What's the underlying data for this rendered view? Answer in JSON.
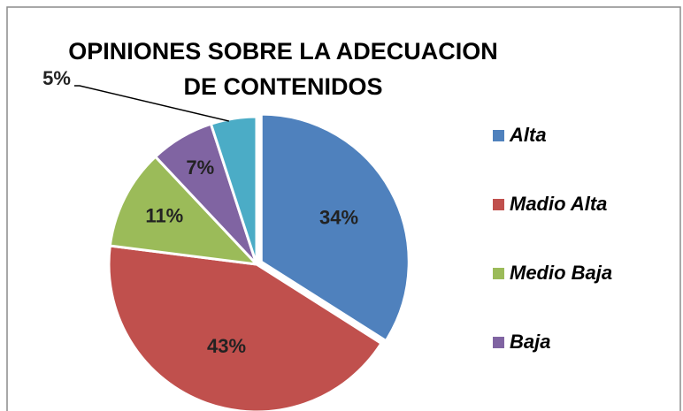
{
  "chart_data": {
    "type": "pie",
    "title": "OPINIONES SOBRE LA ADECUACION DE CONTENIDOS",
    "categories": [
      "Alta",
      "Madio Alta",
      "Medio Baja",
      "Baja",
      null
    ],
    "values": [
      34,
      43,
      11,
      7,
      5
    ],
    "value_labels": [
      "34%",
      "43%",
      "11%",
      "7%",
      "5%"
    ],
    "colors": [
      "#4f81bd",
      "#c0504d",
      "#9bbb59",
      "#8064a2",
      "#4bacc6"
    ],
    "legend": "right"
  }
}
